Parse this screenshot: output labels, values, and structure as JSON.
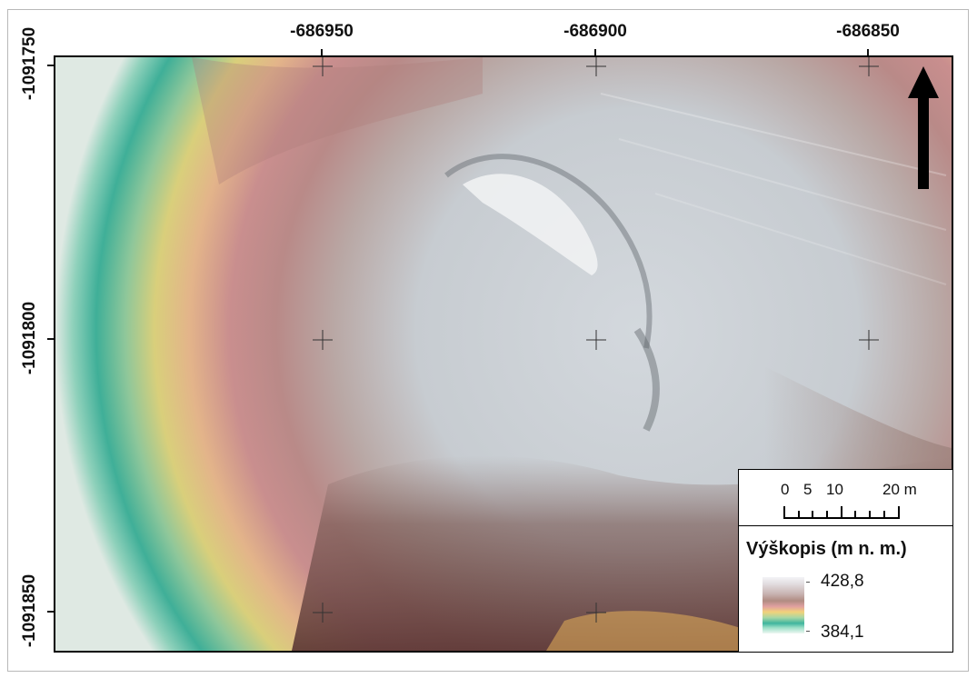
{
  "map": {
    "x_ticks": [
      "-686950",
      "-686900",
      "-686850"
    ],
    "y_ticks": [
      "-1091750",
      "-1091800",
      "-1091850"
    ],
    "north_arrow_icon": "north-arrow-icon"
  },
  "scale_bar": {
    "labels": [
      "0",
      "5",
      "10",
      "20 m"
    ]
  },
  "legend": {
    "title": "Výškopis (m n. m.)",
    "max_label": "428,8",
    "min_label": "384,1"
  },
  "colors": {
    "low": "#3fb59e",
    "mid_low": "#f2d27a",
    "mid": "#e0a0a0",
    "mid_high": "#b08c82",
    "high": "#f3f3f6"
  }
}
